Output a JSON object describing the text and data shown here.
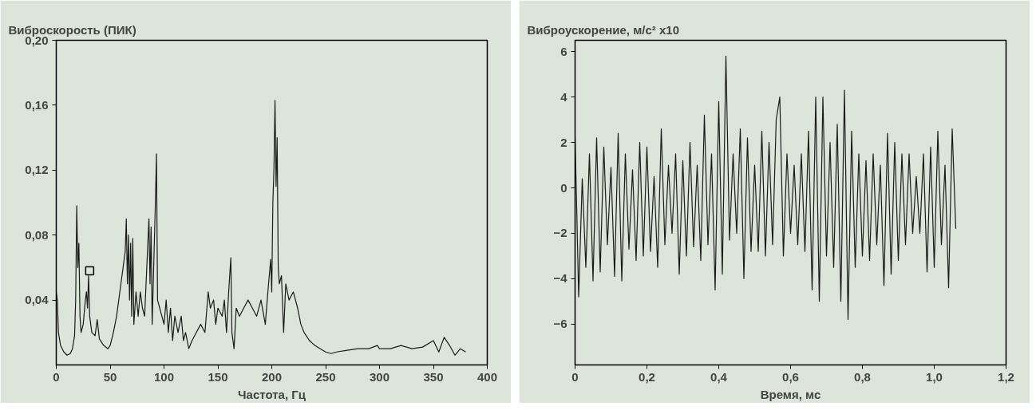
{
  "chart_data": [
    {
      "type": "line",
      "title": "Виброскорость (ПИК)",
      "xlabel": "Частота, Гц",
      "grid": false,
      "marker": "none",
      "line_style": "solid",
      "xlim": [
        0,
        400
      ],
      "ylim": [
        0,
        0.2
      ],
      "xticks": [
        0,
        50,
        100,
        150,
        200,
        250,
        300,
        350,
        400
      ],
      "yticks": [
        {
          "value": 0.04,
          "label": "0,04"
        },
        {
          "value": 0.08,
          "label": "0,08"
        },
        {
          "value": 0.12,
          "label": "0,12"
        },
        {
          "value": 0.16,
          "label": "0,16"
        },
        {
          "value": 0.2,
          "label": "0,20"
        }
      ],
      "series": [
        {
          "color": "#1a1a1a",
          "x": [
            0,
            1,
            2,
            4,
            7,
            10,
            13,
            15,
            17,
            18,
            19,
            20,
            21,
            22,
            23,
            25,
            27,
            28,
            29,
            30,
            31,
            33,
            36,
            38,
            40,
            44,
            48,
            50,
            53,
            56,
            58,
            60,
            62,
            64,
            65,
            66,
            67,
            68,
            69,
            70,
            71,
            72,
            74,
            76,
            78,
            80,
            82,
            84,
            86,
            87,
            88,
            89,
            90,
            92,
            93,
            94,
            96,
            98,
            100,
            102,
            104,
            106,
            108,
            110,
            113,
            116,
            118,
            120,
            123,
            126,
            130,
            134,
            138,
            141,
            143,
            146,
            148,
            150,
            154,
            156,
            158,
            160,
            162,
            163,
            165,
            167,
            170,
            174,
            178,
            182,
            186,
            190,
            194,
            197,
            199,
            200,
            201,
            202,
            203,
            204,
            205,
            206,
            207,
            209,
            211,
            213,
            216,
            220,
            224,
            227,
            230,
            235,
            240,
            245,
            250,
            255,
            260,
            270,
            280,
            290,
            298,
            300,
            310,
            320,
            330,
            340,
            350,
            355,
            360,
            365,
            370,
            375,
            380
          ],
          "values": [
            0.045,
            0.04,
            0.02,
            0.012,
            0.008,
            0.006,
            0.007,
            0.01,
            0.018,
            0.04,
            0.098,
            0.06,
            0.075,
            0.03,
            0.02,
            0.025,
            0.04,
            0.045,
            0.035,
            0.055,
            0.03,
            0.02,
            0.018,
            0.028,
            0.016,
            0.012,
            0.01,
            0.012,
            0.02,
            0.03,
            0.04,
            0.05,
            0.06,
            0.07,
            0.09,
            0.05,
            0.08,
            0.04,
            0.075,
            0.03,
            0.078,
            0.025,
            0.045,
            0.03,
            0.045,
            0.035,
            0.03,
            0.06,
            0.09,
            0.05,
            0.085,
            0.025,
            0.05,
            0.1,
            0.13,
            0.04,
            0.035,
            0.03,
            0.025,
            0.04,
            0.02,
            0.035,
            0.015,
            0.03,
            0.02,
            0.03,
            0.015,
            0.02,
            0.01,
            0.015,
            0.02,
            0.025,
            0.02,
            0.045,
            0.035,
            0.04,
            0.025,
            0.035,
            0.03,
            0.04,
            0.02,
            0.045,
            0.066,
            0.02,
            0.01,
            0.035,
            0.03,
            0.035,
            0.04,
            0.035,
            0.03,
            0.04,
            0.025,
            0.05,
            0.065,
            0.045,
            0.1,
            0.12,
            0.163,
            0.11,
            0.14,
            0.06,
            0.05,
            0.055,
            0.02,
            0.05,
            0.04,
            0.045,
            0.035,
            0.025,
            0.02,
            0.015,
            0.012,
            0.01,
            0.008,
            0.007,
            0.008,
            0.009,
            0.01,
            0.01,
            0.012,
            0.01,
            0.01,
            0.012,
            0.01,
            0.011,
            0.015,
            0.008,
            0.017,
            0.012,
            0.006,
            0.01,
            0.008
          ]
        },
        {
          "type": "scatter",
          "marker": "square",
          "color": "#000000",
          "x": [
            31
          ],
          "values": [
            0.058
          ]
        }
      ]
    },
    {
      "type": "line",
      "title": "Виброускорение, м/с² x10",
      "xlabel": "Время, мс",
      "grid": false,
      "marker": "none",
      "line_style": "solid",
      "xlim": [
        0,
        1.2
      ],
      "ylim": [
        -7.8,
        6.5
      ],
      "xticks": [
        0,
        {
          "value": 0.2,
          "label": "0,2"
        },
        {
          "value": 0.4,
          "label": "0,4"
        },
        {
          "value": 0.6,
          "label": "0,6"
        },
        {
          "value": 0.8,
          "label": "0,8"
        },
        {
          "value": 1.0,
          "label": "1,0"
        },
        {
          "value": 1.2,
          "label": "1,2"
        }
      ],
      "yticks": [
        -6,
        -4,
        -2,
        0,
        2,
        4,
        6
      ],
      "series": [
        {
          "color": "#1a1a1a",
          "x": [
            0,
            0.01,
            0.02,
            0.03,
            0.04,
            0.05,
            0.06,
            0.07,
            0.08,
            0.09,
            0.1,
            0.11,
            0.12,
            0.13,
            0.14,
            0.15,
            0.16,
            0.17,
            0.18,
            0.19,
            0.2,
            0.21,
            0.22,
            0.23,
            0.24,
            0.25,
            0.26,
            0.27,
            0.28,
            0.29,
            0.3,
            0.31,
            0.32,
            0.33,
            0.34,
            0.35,
            0.36,
            0.37,
            0.38,
            0.39,
            0.4,
            0.41,
            0.42,
            0.43,
            0.44,
            0.45,
            0.46,
            0.47,
            0.48,
            0.49,
            0.5,
            0.51,
            0.52,
            0.53,
            0.54,
            0.55,
            0.56,
            0.57,
            0.58,
            0.59,
            0.6,
            0.61,
            0.62,
            0.63,
            0.64,
            0.65,
            0.66,
            0.67,
            0.68,
            0.69,
            0.7,
            0.71,
            0.72,
            0.73,
            0.74,
            0.75,
            0.76,
            0.77,
            0.78,
            0.79,
            0.8,
            0.81,
            0.82,
            0.83,
            0.84,
            0.85,
            0.86,
            0.87,
            0.88,
            0.89,
            0.9,
            0.91,
            0.92,
            0.93,
            0.94,
            0.95,
            0.96,
            0.97,
            0.98,
            0.99,
            1.0,
            1.01,
            1.02,
            1.03,
            1.04,
            1.05,
            1.06
          ],
          "values": [
            2.3,
            -4.8,
            0.4,
            -3.5,
            1.5,
            -4.1,
            2.2,
            -3.7,
            1.8,
            -2.5,
            0.9,
            -3.9,
            2.4,
            -4.1,
            1.5,
            -2.7,
            0.8,
            -3.2,
            2.0,
            -3.0,
            1.8,
            -2.8,
            0.5,
            -3.5,
            2.6,
            -2.5,
            1.0,
            -2.0,
            1.5,
            -3.8,
            1.2,
            -3.0,
            2.0,
            -2.6,
            1.0,
            -3.2,
            3.2,
            -2.5,
            1.5,
            -4.5,
            3.8,
            -3.8,
            5.8,
            -2.3,
            1.5,
            -2.0,
            2.6,
            -4.0,
            2.2,
            -2.8,
            1.0,
            -2.8,
            2.5,
            -3.0,
            2.0,
            -2.5,
            3.0,
            4.0,
            -3.0,
            1.5,
            -2.0,
            1.0,
            -2.5,
            1.5,
            -2.8,
            2.5,
            -4.5,
            4.0,
            -5.0,
            4.0,
            -3.0,
            2.0,
            -3.5,
            2.8,
            -5.0,
            4.3,
            -5.8,
            2.5,
            -3.5,
            1.5,
            -3.0,
            1.2,
            -3.2,
            1.5,
            -2.5,
            1.0,
            -4.3,
            2.4,
            -3.8,
            2.0,
            -3.2,
            1.5,
            -2.5,
            1.5,
            -2.0,
            0.5,
            -2.0,
            1.5,
            -3.7,
            1.8,
            -3.5,
            2.5,
            -2.5,
            1.0,
            -4.4,
            2.6,
            -1.8
          ]
        }
      ]
    }
  ]
}
